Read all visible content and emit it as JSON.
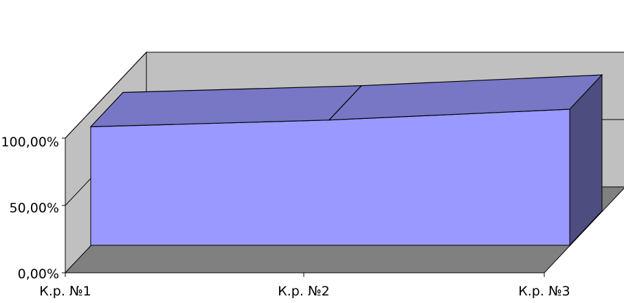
{
  "chart_data": {
    "type": "area",
    "categories": [
      "К.р. №1",
      "К.р. №2",
      "К.р. №3"
    ],
    "values": [
      88,
      93,
      101
    ],
    "ylim": [
      0,
      100
    ],
    "yticks": [
      "0,00%",
      "50,00%",
      "100,00%"
    ],
    "grid": true,
    "legend": "none",
    "colors": {
      "front": "#9999ff",
      "top": "#7777c6",
      "side": "#4d4d80",
      "back_wall": "#c0c0c0",
      "left_wall": "#c0c0c0",
      "floor": "#808080",
      "gridline": "#000000"
    }
  }
}
